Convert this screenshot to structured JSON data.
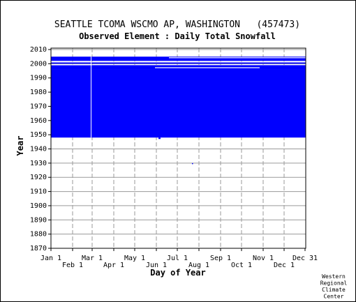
{
  "chart_data": {
    "type": "heatmap",
    "title": "SEATTLE TCOMA WSCMO AP, WASHINGTON   (457473)",
    "subtitle": "Observed Element : Daily Total Snowfall",
    "xlabel": "Day of Year",
    "ylabel": "Year",
    "xlim": [
      1,
      366
    ],
    "ylim": [
      1870,
      2011
    ],
    "y_ticks": [
      1870,
      1880,
      1890,
      1900,
      1910,
      1920,
      1930,
      1940,
      1950,
      1960,
      1970,
      1980,
      1990,
      2000,
      2010
    ],
    "x_ticks_top_row": [
      {
        "label": "Jan 1",
        "day": 1
      },
      {
        "label": "Mar 1",
        "day": 60
      },
      {
        "label": "May 1",
        "day": 121
      },
      {
        "label": "Jul 1",
        "day": 182
      },
      {
        "label": "Sep 1",
        "day": 244
      },
      {
        "label": "Nov 1",
        "day": 305
      },
      {
        "label": "Dec 31",
        "day": 365
      }
    ],
    "x_ticks_bottom_row": [
      {
        "label": "Feb 1",
        "day": 32
      },
      {
        "label": "Apr 1",
        "day": 91
      },
      {
        "label": "Jun 1",
        "day": 152
      },
      {
        "label": "Aug 1",
        "day": 213
      },
      {
        "label": "Oct 1",
        "day": 274
      },
      {
        "label": "Dec 1",
        "day": 335
      }
    ],
    "grid": true,
    "fill_color": "#0000ff",
    "data_blocks": [
      {
        "day_start": 1,
        "day_end": 366,
        "year_start": 1948,
        "year_end": 1996
      },
      {
        "day_start": 1,
        "day_end": 366,
        "year_start": 1996,
        "year_end": 1999
      },
      {
        "day_start": 1,
        "day_end": 366,
        "year_start": 2000,
        "year_end": 2001
      },
      {
        "day_start": 1,
        "day_end": 366,
        "year_start": 2002,
        "year_end": 2005
      },
      {
        "day_start": 155,
        "day_end": 158,
        "year_start": 1947,
        "year_end": 1948
      }
    ],
    "missing_rows": [
      {
        "day_start": 1,
        "day_end": 366,
        "year": 2001
      },
      {
        "day_start": 170,
        "day_end": 366,
        "year": 2004
      },
      {
        "day_start": 1,
        "day_end": 60,
        "year": 1999
      },
      {
        "day_start": 150,
        "day_end": 300,
        "year": 1997
      }
    ],
    "missing_columns": [
      {
        "day": 58,
        "year_start": 1948,
        "year_end": 2005
      }
    ],
    "isolated_points": [
      {
        "day": 203,
        "year": 1930
      }
    ]
  },
  "credit": [
    "Western",
    "Regional",
    "Climate",
    "Center"
  ]
}
